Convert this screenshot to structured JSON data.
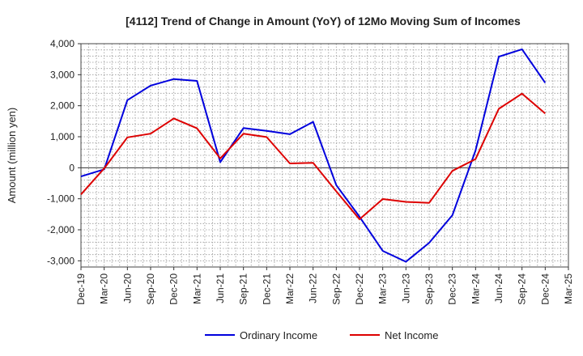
{
  "chart_data": {
    "type": "line",
    "title": "[4112]  Trend of Change in Amount (YoY) of 12Mo Moving Sum of Incomes",
    "ylabel": "Amount (million yen)",
    "xlabel": "",
    "ylim": [
      -3200,
      4000
    ],
    "yticks": [
      -3000,
      -2000,
      -1000,
      0,
      1000,
      2000,
      3000,
      4000
    ],
    "ytick_labels": [
      "-3,000",
      "-2,000",
      "-1,000",
      "0",
      "1,000",
      "2,000",
      "3,000",
      "4,000"
    ],
    "categories": [
      "Dec-19",
      "Mar-20",
      "Jun-20",
      "Sep-20",
      "Dec-20",
      "Mar-21",
      "Jun-21",
      "Sep-21",
      "Dec-21",
      "Mar-22",
      "Jun-22",
      "Sep-22",
      "Dec-22",
      "Mar-23",
      "Jun-23",
      "Sep-23",
      "Dec-23",
      "Mar-24",
      "Jun-24",
      "Sep-24",
      "Dec-24",
      "Mar-25"
    ],
    "grid": true,
    "legend_position": "bottom-center",
    "series": [
      {
        "name": "Ordinary Income",
        "color": "#0000dd",
        "values": [
          -280,
          -50,
          2180,
          2650,
          2860,
          2800,
          180,
          1280,
          1190,
          1080,
          1480,
          -560,
          -1580,
          -2680,
          -3030,
          -2420,
          -1530,
          560,
          3580,
          3820,
          2740,
          null
        ]
      },
      {
        "name": "Net Income",
        "color": "#dd0000",
        "values": [
          -860,
          -20,
          980,
          1100,
          1590,
          1270,
          300,
          1100,
          990,
          140,
          160,
          -760,
          -1660,
          -1010,
          -1100,
          -1130,
          -100,
          280,
          1900,
          2390,
          1750,
          null
        ]
      }
    ]
  }
}
